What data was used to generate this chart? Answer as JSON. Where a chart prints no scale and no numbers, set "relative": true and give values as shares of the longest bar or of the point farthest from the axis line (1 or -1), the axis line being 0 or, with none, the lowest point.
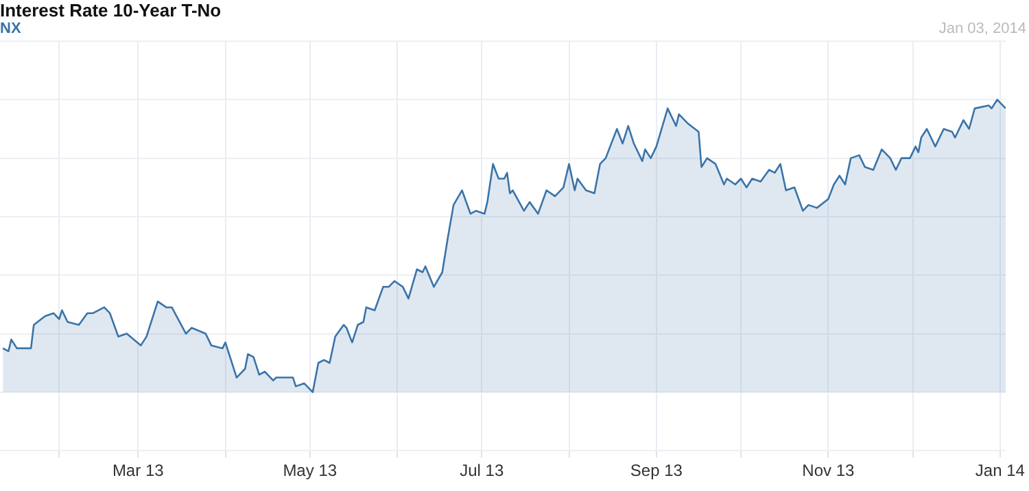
{
  "chart_data": {
    "type": "area",
    "title": "Interest Rate 10-Year T-No",
    "subtitle": "NX",
    "annotations": [
      "Jan 03, 2014"
    ],
    "relative": true,
    "grid": true,
    "legend": false,
    "marker": "none",
    "xlim": [
      "2013-01-11",
      "2014-01-03"
    ],
    "xticks": [
      {
        "value": "2013-02-01",
        "label": null
      },
      {
        "value": "2013-03-01",
        "label": "Mar 13"
      },
      {
        "value": "2013-04-01",
        "label": null
      },
      {
        "value": "2013-05-01",
        "label": "May 13"
      },
      {
        "value": "2013-06-01",
        "label": null
      },
      {
        "value": "2013-07-01",
        "label": "Jul 13"
      },
      {
        "value": "2013-08-01",
        "label": null
      },
      {
        "value": "2013-09-01",
        "label": "Sep 13"
      },
      {
        "value": "2013-10-01",
        "label": null
      },
      {
        "value": "2013-11-01",
        "label": "Nov 13"
      },
      {
        "value": "2013-12-01",
        "label": null
      },
      {
        "value": "2014-01-01",
        "label": "Jan 14"
      }
    ],
    "x": [
      "2013-01-12",
      "2013-01-14",
      "2013-01-15",
      "2013-01-17",
      "2013-01-22",
      "2013-01-23",
      "2013-01-27",
      "2013-01-30",
      "2013-02-01",
      "2013-02-02",
      "2013-02-04",
      "2013-02-08",
      "2013-02-11",
      "2013-02-13",
      "2013-02-17",
      "2013-02-19",
      "2013-02-22",
      "2013-02-25",
      "2013-03-02",
      "2013-03-04",
      "2013-03-08",
      "2013-03-11",
      "2013-03-13",
      "2013-03-18",
      "2013-03-20",
      "2013-03-25",
      "2013-03-27",
      "2013-03-31",
      "2013-04-01",
      "2013-04-05",
      "2013-04-08",
      "2013-04-09",
      "2013-04-11",
      "2013-04-13",
      "2013-04-15",
      "2013-04-18",
      "2013-04-19",
      "2013-04-25",
      "2013-04-26",
      "2013-04-29",
      "2013-05-02",
      "2013-05-04",
      "2013-05-06",
      "2013-05-08",
      "2013-05-10",
      "2013-05-13",
      "2013-05-14",
      "2013-05-16",
      "2013-05-18",
      "2013-05-20",
      "2013-05-21",
      "2013-05-24",
      "2013-05-27",
      "2013-05-29",
      "2013-05-31",
      "2013-06-03",
      "2013-06-05",
      "2013-06-08",
      "2013-06-10",
      "2013-06-11",
      "2013-06-14",
      "2013-06-17",
      "2013-06-19",
      "2013-06-21",
      "2013-06-24",
      "2013-06-27",
      "2013-06-29",
      "2013-07-02",
      "2013-07-03",
      "2013-07-05",
      "2013-07-07",
      "2013-07-09",
      "2013-07-10",
      "2013-07-11",
      "2013-07-12",
      "2013-07-16",
      "2013-07-18",
      "2013-07-21",
      "2013-07-24",
      "2013-07-27",
      "2013-07-30",
      "2013-08-01",
      "2013-08-03",
      "2013-08-04",
      "2013-08-07",
      "2013-08-10",
      "2013-08-12",
      "2013-08-14",
      "2013-08-18",
      "2013-08-20",
      "2013-08-22",
      "2013-08-24",
      "2013-08-27",
      "2013-08-28",
      "2013-08-30",
      "2013-09-01",
      "2013-09-05",
      "2013-09-08",
      "2013-09-09",
      "2013-09-12",
      "2013-09-16",
      "2013-09-17",
      "2013-09-19",
      "2013-09-22",
      "2013-09-25",
      "2013-09-26",
      "2013-09-29",
      "2013-10-01",
      "2013-10-03",
      "2013-10-05",
      "2013-10-08",
      "2013-10-11",
      "2013-10-13",
      "2013-10-15",
      "2013-10-17",
      "2013-10-20",
      "2013-10-23",
      "2013-10-25",
      "2013-10-28",
      "2013-11-01",
      "2013-11-03",
      "2013-11-05",
      "2013-11-07",
      "2013-11-09",
      "2013-11-12",
      "2013-11-14",
      "2013-11-17",
      "2013-11-20",
      "2013-11-23",
      "2013-11-25",
      "2013-11-27",
      "2013-11-30",
      "2013-12-02",
      "2013-12-03",
      "2013-12-04",
      "2013-12-06",
      "2013-12-09",
      "2013-12-12",
      "2013-12-15",
      "2013-12-16",
      "2013-12-19",
      "2013-12-21",
      "2013-12-23",
      "2013-12-28",
      "2013-12-29",
      "2013-12-31",
      "2014-01-03"
    ],
    "series": [
      {
        "color": "#3a73a8",
        "values": [
          0.15,
          0.14,
          0.18,
          0.15,
          0.15,
          0.23,
          0.26,
          0.27,
          0.25,
          0.28,
          0.24,
          0.23,
          0.27,
          0.27,
          0.29,
          0.27,
          0.19,
          0.2,
          0.16,
          0.19,
          0.31,
          0.29,
          0.29,
          0.2,
          0.22,
          0.2,
          0.16,
          0.15,
          0.17,
          0.05,
          0.08,
          0.13,
          0.12,
          0.06,
          0.07,
          0.04,
          0.05,
          0.05,
          0.02,
          0.03,
          0,
          0.1,
          0.11,
          0.1,
          0.19,
          0.23,
          0.22,
          0.17,
          0.23,
          0.24,
          0.29,
          0.28,
          0.36,
          0.36,
          0.38,
          0.36,
          0.32,
          0.42,
          0.41,
          0.43,
          0.36,
          0.41,
          0.53,
          0.64,
          0.69,
          0.61,
          0.62,
          0.61,
          0.65,
          0.78,
          0.73,
          0.73,
          0.75,
          0.68,
          0.69,
          0.62,
          0.65,
          0.61,
          0.69,
          0.67,
          0.7,
          0.78,
          0.69,
          0.73,
          0.69,
          0.68,
          0.78,
          0.8,
          0.9,
          0.85,
          0.91,
          0.85,
          0.79,
          0.83,
          0.8,
          0.84,
          0.97,
          0.91,
          0.95,
          0.92,
          0.89,
          0.77,
          0.8,
          0.78,
          0.71,
          0.73,
          0.71,
          0.73,
          0.7,
          0.73,
          0.72,
          0.76,
          0.75,
          0.78,
          0.69,
          0.7,
          0.62,
          0.64,
          0.63,
          0.66,
          0.71,
          0.74,
          0.71,
          0.8,
          0.81,
          0.77,
          0.76,
          0.83,
          0.8,
          0.76,
          0.8,
          0.8,
          0.84,
          0.82,
          0.87,
          0.9,
          0.84,
          0.9,
          0.89,
          0.87,
          0.93,
          0.9,
          0.97,
          0.98,
          0.97,
          1,
          0.97
        ]
      }
    ]
  }
}
